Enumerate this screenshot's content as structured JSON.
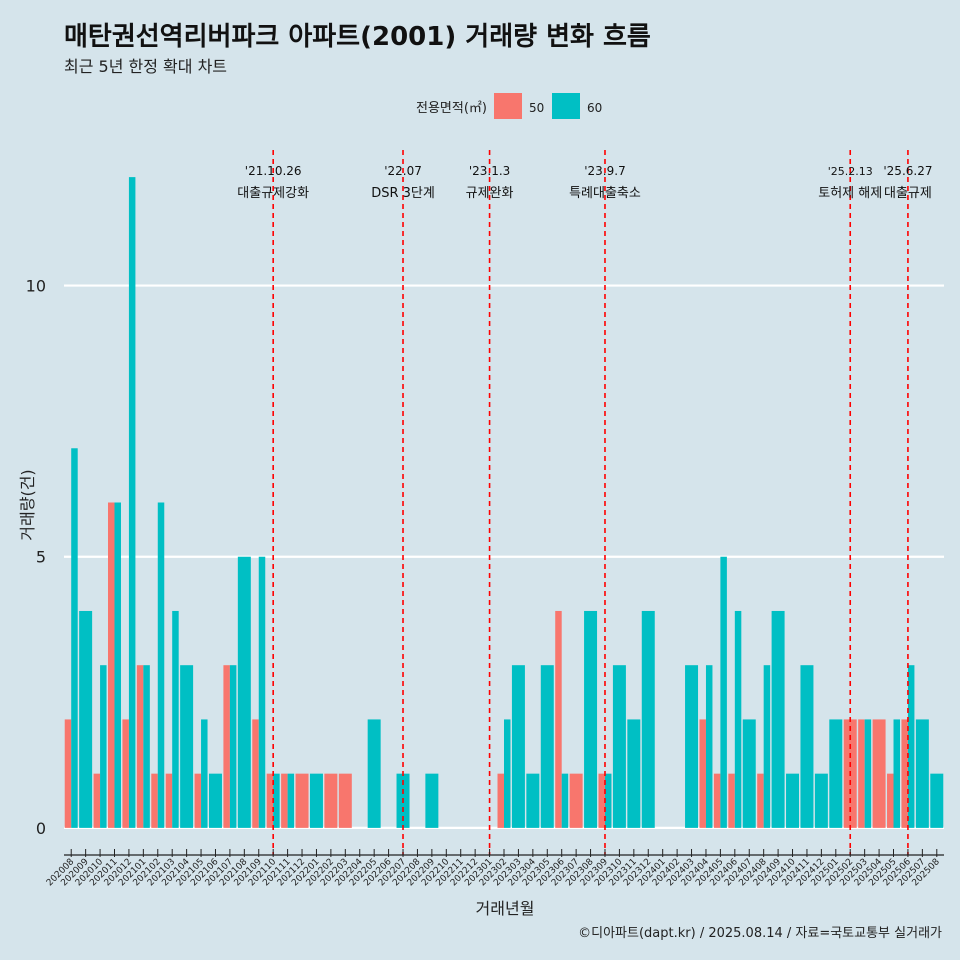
{
  "title": "매탄권선역리버파크 아파트(2001) 거래량 변화 흐름",
  "subtitle": "최근 5년 한정 확대 차트",
  "caption": "©디아파트(dapt.kr) / 2025.08.14 / 자료=국토교통부 실거래가",
  "colors": {
    "50": "#f8766d",
    "60": "#00bfc4",
    "background": "#d5e4eb",
    "event_line": "#ff0000"
  },
  "chart_data": {
    "type": "bar",
    "xlabel": "거래년월",
    "ylabel": "거래량(건)",
    "ylim": [
      -0.5,
      12.5
    ],
    "yticks": [
      0,
      5,
      10
    ],
    "legend": {
      "title": "전용면적(㎡)",
      "position": "top",
      "entries": [
        "50",
        "60"
      ]
    },
    "grid": true,
    "categories": [
      "202008",
      "202009",
      "202010",
      "202011",
      "202012",
      "202101",
      "202102",
      "202103",
      "202104",
      "202105",
      "202106",
      "202107",
      "202108",
      "202109",
      "202110",
      "202111",
      "202112",
      "202201",
      "202202",
      "202203",
      "202204",
      "202205",
      "202206",
      "202207",
      "202208",
      "202209",
      "202210",
      "202211",
      "202212",
      "202301",
      "202302",
      "202303",
      "202304",
      "202305",
      "202306",
      "202307",
      "202308",
      "202309",
      "202310",
      "202311",
      "202312",
      "202401",
      "202402",
      "202403",
      "202404",
      "202405",
      "202406",
      "202407",
      "202408",
      "202409",
      "202410",
      "202411",
      "202412",
      "202501",
      "202502",
      "202503",
      "202504",
      "202505",
      "202506",
      "202507",
      "202508"
    ],
    "series": [
      {
        "name": "50",
        "values": [
          2,
          0,
          1,
          6,
          2,
          3,
          1,
          1,
          0,
          1,
          0,
          3,
          0,
          2,
          1,
          1,
          1,
          0,
          1,
          1,
          0,
          0,
          0,
          0,
          0,
          0,
          0,
          0,
          0,
          0,
          1,
          0,
          0,
          0,
          4,
          1,
          0,
          1,
          0,
          0,
          0,
          0,
          0,
          0,
          2,
          1,
          1,
          0,
          1,
          0,
          0,
          0,
          0,
          0,
          2,
          2,
          2,
          1,
          2,
          0,
          0
        ]
      },
      {
        "name": "60",
        "values": [
          7,
          4,
          3,
          6,
          12,
          3,
          6,
          4,
          3,
          2,
          1,
          3,
          5,
          5,
          1,
          1,
          0,
          1,
          0,
          0,
          0,
          2,
          0,
          1,
          0,
          1,
          0,
          0,
          0,
          0,
          2,
          3,
          1,
          3,
          1,
          0,
          4,
          1,
          3,
          2,
          4,
          0,
          0,
          3,
          3,
          5,
          4,
          2,
          3,
          4,
          1,
          3,
          1,
          2,
          0,
          2,
          0,
          2,
          3,
          2,
          1
        ]
      }
    ],
    "events": [
      {
        "at": "202110",
        "date": "'21.10.26",
        "label": "대출규제강화"
      },
      {
        "at": "202207",
        "date": "'22.07",
        "label": "DSR 3단계"
      },
      {
        "at": "202301",
        "date": "'23.1.3",
        "label": "규제완화"
      },
      {
        "at": "202309",
        "date": "'23.9.7",
        "label": "특례대출축소"
      },
      {
        "at": "202502",
        "date": "'25.2.13",
        "label": "토허제 해제"
      },
      {
        "at": "202506",
        "date": "'25.6.27",
        "label": "대출규제"
      }
    ]
  }
}
